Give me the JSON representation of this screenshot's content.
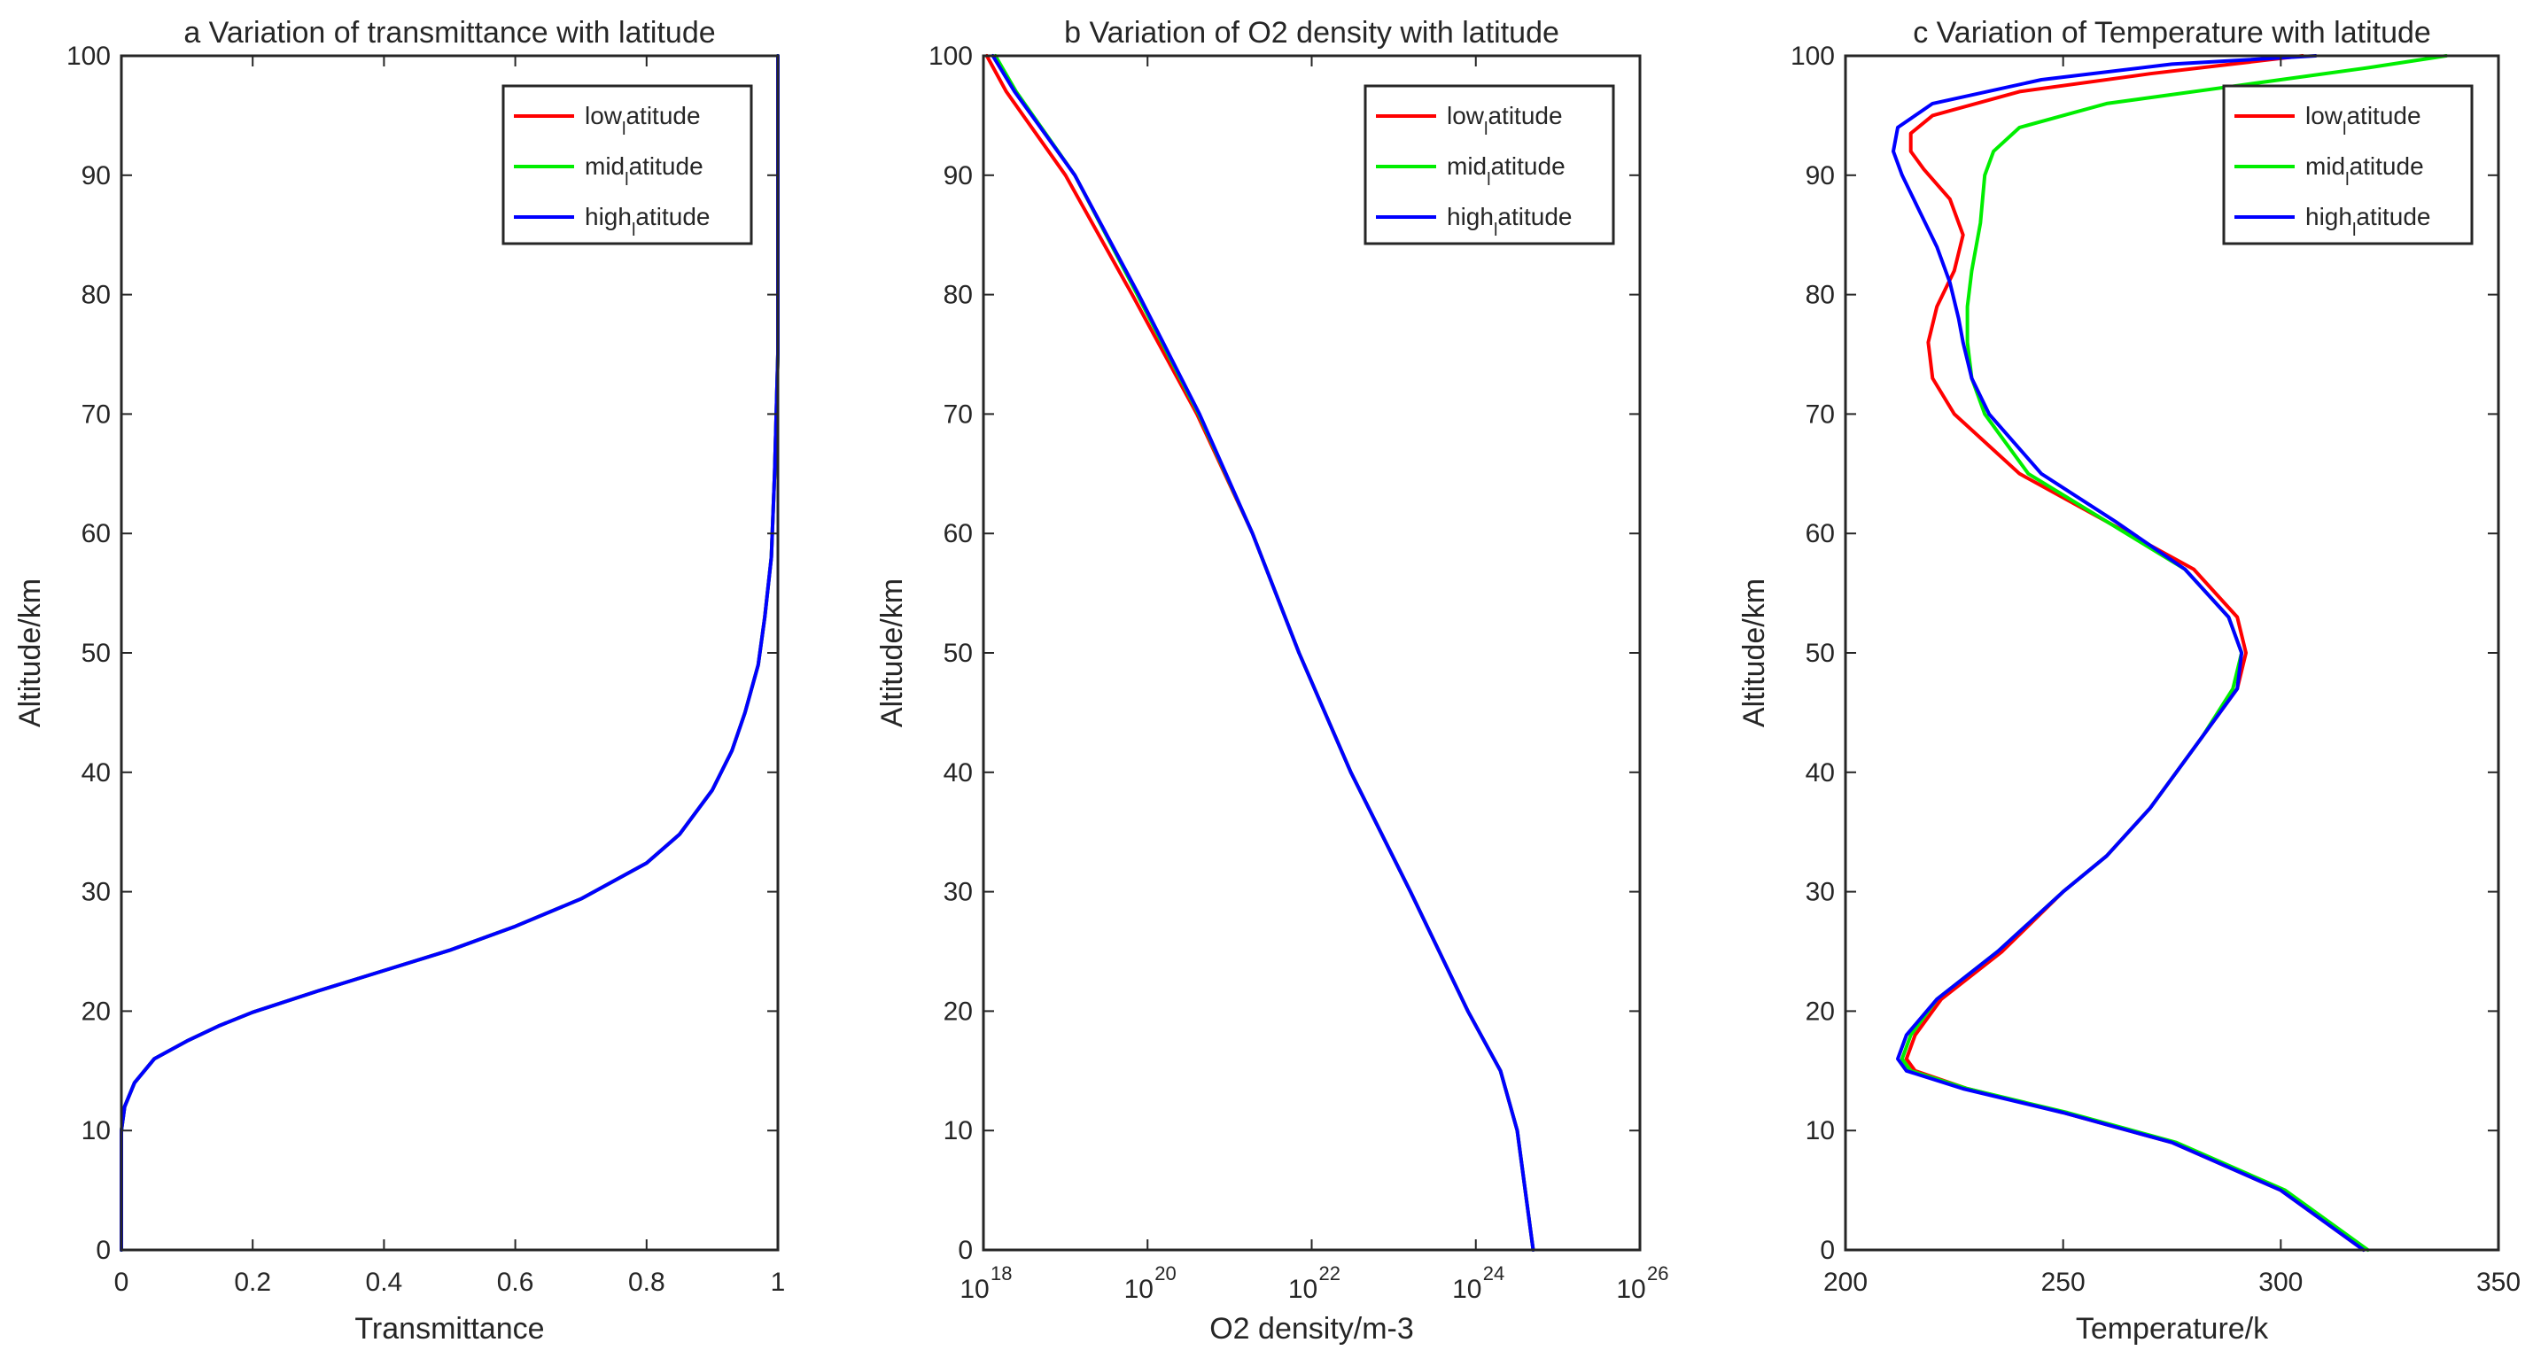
{
  "chart_data": [
    {
      "type": "line",
      "title": "a Variation of transmittance with latitude",
      "xlabel": "Transmittance",
      "ylabel": "Altitude/km",
      "xscale": "linear",
      "xlim": [
        0,
        1
      ],
      "ylim": [
        0,
        100
      ],
      "xticks": [
        0,
        0.2,
        0.4,
        0.6,
        0.8,
        1
      ],
      "xtick_labels": [
        "0",
        "0.2",
        "0.4",
        "0.6",
        "0.8",
        "1"
      ],
      "yticks": [
        0,
        10,
        20,
        30,
        40,
        50,
        60,
        70,
        80,
        90,
        100
      ],
      "ytick_labels": [
        "0",
        "10",
        "20",
        "30",
        "40",
        "50",
        "60",
        "70",
        "80",
        "90",
        "100"
      ],
      "legend_position": "top-right",
      "series": [
        {
          "name": "low latitude",
          "legend_base": "low",
          "legend_sub": "l",
          "legend_rest": "atitude",
          "color": "#ff0000",
          "points": [
            [
              0,
              0
            ],
            [
              0,
              10
            ],
            [
              0.005,
              12
            ],
            [
              0.02,
              14
            ],
            [
              0.05,
              16
            ],
            [
              0.1,
              17.5
            ],
            [
              0.15,
              18.8
            ],
            [
              0.2,
              19.9
            ],
            [
              0.3,
              21.7
            ],
            [
              0.4,
              23.4
            ],
            [
              0.5,
              25.1
            ],
            [
              0.6,
              27.1
            ],
            [
              0.7,
              29.4
            ],
            [
              0.8,
              32.4
            ],
            [
              0.85,
              34.8
            ],
            [
              0.9,
              38.5
            ],
            [
              0.93,
              41.8
            ],
            [
              0.95,
              45
            ],
            [
              0.97,
              49
            ],
            [
              0.98,
              53
            ],
            [
              0.99,
              58
            ],
            [
              0.995,
              65
            ],
            [
              1,
              75
            ],
            [
              1,
              100
            ]
          ]
        },
        {
          "name": "mid latitude",
          "legend_base": "mid",
          "legend_sub": "l",
          "legend_rest": "atitude",
          "color": "#00ee00",
          "points": [
            [
              0,
              0
            ],
            [
              0,
              10
            ],
            [
              0.005,
              12
            ],
            [
              0.02,
              14
            ],
            [
              0.05,
              16
            ],
            [
              0.1,
              17.5
            ],
            [
              0.15,
              18.8
            ],
            [
              0.2,
              19.9
            ],
            [
              0.3,
              21.7
            ],
            [
              0.4,
              23.4
            ],
            [
              0.5,
              25.1
            ],
            [
              0.6,
              27.1
            ],
            [
              0.7,
              29.4
            ],
            [
              0.8,
              32.4
            ],
            [
              0.85,
              34.8
            ],
            [
              0.9,
              38.5
            ],
            [
              0.93,
              41.8
            ],
            [
              0.95,
              45
            ],
            [
              0.97,
              49
            ],
            [
              0.98,
              53
            ],
            [
              0.99,
              58
            ],
            [
              0.995,
              65
            ],
            [
              1,
              75
            ],
            [
              1,
              100
            ]
          ]
        },
        {
          "name": "high latitude",
          "legend_base": "high",
          "legend_sub": "l",
          "legend_rest": "atitude",
          "color": "#0000ff",
          "points": [
            [
              0,
              0
            ],
            [
              0,
              10
            ],
            [
              0.005,
              12
            ],
            [
              0.02,
              14
            ],
            [
              0.05,
              16
            ],
            [
              0.1,
              17.5
            ],
            [
              0.15,
              18.8
            ],
            [
              0.2,
              19.9
            ],
            [
              0.3,
              21.7
            ],
            [
              0.4,
              23.4
            ],
            [
              0.5,
              25.1
            ],
            [
              0.6,
              27.1
            ],
            [
              0.7,
              29.4
            ],
            [
              0.8,
              32.4
            ],
            [
              0.85,
              34.8
            ],
            [
              0.9,
              38.5
            ],
            [
              0.93,
              41.8
            ],
            [
              0.95,
              45
            ],
            [
              0.97,
              49
            ],
            [
              0.98,
              53
            ],
            [
              0.99,
              58
            ],
            [
              0.995,
              65
            ],
            [
              1,
              75
            ],
            [
              1,
              100
            ]
          ]
        }
      ]
    },
    {
      "type": "line",
      "title": "b Variation of O2 density with latitude",
      "xlabel": "O2 density/m-3",
      "ylabel": "Altitude/km",
      "xscale": "log",
      "xlim": [
        1e+18,
        1e+26
      ],
      "ylim": [
        0,
        100
      ],
      "xticks": [
        1e+18,
        1e+20,
        1e+22,
        1e+24,
        1e+26
      ],
      "xtick_labels": [
        {
          "base": "10",
          "exp": "18"
        },
        {
          "base": "10",
          "exp": "20"
        },
        {
          "base": "10",
          "exp": "22"
        },
        {
          "base": "10",
          "exp": "24"
        },
        {
          "base": "10",
          "exp": "26"
        }
      ],
      "yticks": [
        0,
        10,
        20,
        30,
        40,
        50,
        60,
        70,
        80,
        90,
        100
      ],
      "ytick_labels": [
        "0",
        "10",
        "20",
        "30",
        "40",
        "50",
        "60",
        "70",
        "80",
        "90",
        "100"
      ],
      "legend_position": "top-right",
      "series": [
        {
          "name": "low latitude",
          "legend_base": "low",
          "legend_sub": "l",
          "legend_rest": "atitude",
          "color": "#ff0000",
          "points": [
            [
              5e+24,
              0
            ],
            [
              3.2e+24,
              10
            ],
            [
              2e+24,
              15
            ],
            [
              8e+23,
              20
            ],
            [
              1.6e+23,
              30
            ],
            [
              3e+22,
              40
            ],
            [
              7e+21,
              50
            ],
            [
              1.9e+21,
              60
            ],
            [
              4e+20,
              70
            ],
            [
              6.5e+19,
              80
            ],
            [
              1e+19,
              90
            ],
            [
              1.9e+18,
              97
            ],
            [
              1.1e+18,
              100
            ]
          ]
        },
        {
          "name": "mid latitude",
          "legend_base": "mid",
          "legend_sub": "l",
          "legend_rest": "atitude",
          "color": "#00ee00",
          "points": [
            [
              5e+24,
              0
            ],
            [
              3.2e+24,
              10
            ],
            [
              2e+24,
              15
            ],
            [
              8e+23,
              20
            ],
            [
              1.6e+23,
              30
            ],
            [
              3e+22,
              40
            ],
            [
              7e+21,
              50
            ],
            [
              1.9e+21,
              60
            ],
            [
              4.2e+20,
              70
            ],
            [
              7.5e+19,
              80
            ],
            [
              1.3e+19,
              90
            ],
            [
              2.5e+18,
              97
            ],
            [
              1.4e+18,
              100
            ]
          ]
        },
        {
          "name": "high latitude",
          "legend_base": "high",
          "legend_sub": "l",
          "legend_rest": "atitude",
          "color": "#0000ff",
          "points": [
            [
              5e+24,
              0
            ],
            [
              3.2e+24,
              10
            ],
            [
              2e+24,
              15
            ],
            [
              8e+23,
              20
            ],
            [
              1.6e+23,
              30
            ],
            [
              3e+22,
              40
            ],
            [
              7e+21,
              50
            ],
            [
              1.9e+21,
              60
            ],
            [
              4.3e+20,
              70
            ],
            [
              7.8e+19,
              80
            ],
            [
              1.3e+19,
              90
            ],
            [
              2.4e+18,
              97
            ],
            [
              1.3e+18,
              100
            ]
          ]
        }
      ]
    },
    {
      "type": "line",
      "title": "c Variation of Temperature with latitude",
      "xlabel": "Temperature/k",
      "ylabel": "Altitude/km",
      "xscale": "linear",
      "xlim": [
        200,
        350
      ],
      "ylim": [
        0,
        100
      ],
      "xticks": [
        200,
        250,
        300,
        350
      ],
      "xtick_labels": [
        "200",
        "250",
        "300",
        "350"
      ],
      "yticks": [
        0,
        10,
        20,
        30,
        40,
        50,
        60,
        70,
        80,
        90,
        100
      ],
      "ytick_labels": [
        "0",
        "10",
        "20",
        "30",
        "40",
        "50",
        "60",
        "70",
        "80",
        "90",
        "100"
      ],
      "legend_position": "top-right",
      "series": [
        {
          "name": "low latitude",
          "legend_base": "low",
          "legend_sub": "l",
          "legend_rest": "atitude",
          "color": "#ff0000",
          "points": [
            [
              319,
              0
            ],
            [
              300,
              5
            ],
            [
              275,
              9
            ],
            [
              250,
              11.5
            ],
            [
              228,
              13.5
            ],
            [
              216,
              15
            ],
            [
              214,
              16
            ],
            [
              216,
              18
            ],
            [
              222,
              21
            ],
            [
              236,
              25
            ],
            [
              250,
              30
            ],
            [
              260,
              33
            ],
            [
              270,
              37
            ],
            [
              282,
              43
            ],
            [
              290,
              47
            ],
            [
              292,
              50
            ],
            [
              290,
              53
            ],
            [
              280,
              57
            ],
            [
              260,
              61
            ],
            [
              240,
              65
            ],
            [
              225,
              70
            ],
            [
              220,
              73
            ],
            [
              219,
              76
            ],
            [
              221,
              79
            ],
            [
              225,
              82
            ],
            [
              227,
              85
            ],
            [
              224,
              88
            ],
            [
              218,
              90.5
            ],
            [
              215,
              92
            ],
            [
              215,
              93.5
            ],
            [
              220,
              95
            ],
            [
              240,
              97
            ],
            [
              270,
              98.5
            ],
            [
              305,
              100
            ]
          ]
        },
        {
          "name": "mid latitude",
          "legend_base": "mid",
          "legend_sub": "l",
          "legend_rest": "atitude",
          "color": "#00ee00",
          "points": [
            [
              320,
              0
            ],
            [
              301,
              5
            ],
            [
              276,
              9
            ],
            [
              251,
              11.5
            ],
            [
              228,
              13.5
            ],
            [
              215,
              15
            ],
            [
              213,
              16
            ],
            [
              215,
              18
            ],
            [
              221,
              21
            ],
            [
              235,
              25
            ],
            [
              250,
              30
            ],
            [
              260,
              33
            ],
            [
              270,
              37
            ],
            [
              282,
              43
            ],
            [
              289,
              47
            ],
            [
              291,
              50
            ],
            [
              288,
              53
            ],
            [
              278,
              57
            ],
            [
              260,
              61
            ],
            [
              242,
              65
            ],
            [
              232,
              70
            ],
            [
              229,
              73
            ],
            [
              228,
              76
            ],
            [
              228,
              79
            ],
            [
              229,
              82
            ],
            [
              231,
              86
            ],
            [
              232,
              90
            ],
            [
              234,
              92
            ],
            [
              240,
              94
            ],
            [
              260,
              96
            ],
            [
              290,
              97.5
            ],
            [
              320,
              99
            ],
            [
              338,
              100
            ]
          ]
        },
        {
          "name": "high latitude",
          "legend_base": "high",
          "legend_sub": "l",
          "legend_rest": "atitude",
          "color": "#0000ff",
          "points": [
            [
              319,
              0
            ],
            [
              300,
              5
            ],
            [
              275,
              9
            ],
            [
              250,
              11.5
            ],
            [
              227,
              13.5
            ],
            [
              214,
              15
            ],
            [
              212,
              16
            ],
            [
              214,
              18
            ],
            [
              221,
              21
            ],
            [
              235,
              25
            ],
            [
              250,
              30
            ],
            [
              260,
              33
            ],
            [
              270,
              37
            ],
            [
              282,
              43
            ],
            [
              290,
              47
            ],
            [
              291,
              50
            ],
            [
              288,
              53
            ],
            [
              278,
              57
            ],
            [
              262,
              61
            ],
            [
              245,
              65
            ],
            [
              233,
              70
            ],
            [
              229,
              73
            ],
            [
              227,
              76
            ],
            [
              226,
              78
            ],
            [
              224,
              81
            ],
            [
              221,
              84
            ],
            [
              217,
              87
            ],
            [
              213,
              90
            ],
            [
              211,
              92
            ],
            [
              212,
              94
            ],
            [
              220,
              96
            ],
            [
              245,
              98
            ],
            [
              275,
              99.3
            ],
            [
              308,
              100
            ]
          ]
        }
      ]
    }
  ]
}
